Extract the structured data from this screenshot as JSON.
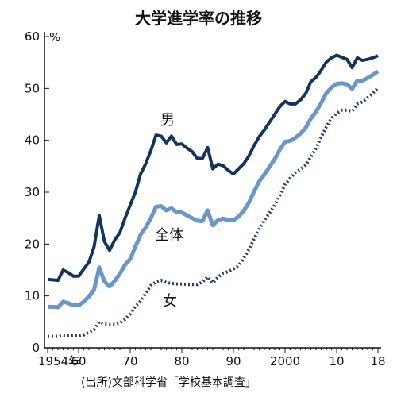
{
  "chart_data": {
    "type": "line",
    "title": "大学進学率の推移",
    "y_unit": "%",
    "source": "(出所)文部科学省「学校基本調査」",
    "x_tick_labels": [
      "1954年",
      "60",
      "70",
      "80",
      "90",
      "2000",
      "10",
      "18"
    ],
    "x_tick_years": [
      1954,
      1960,
      1970,
      1980,
      1990,
      2000,
      2010,
      2018
    ],
    "y_tick_labels": [
      "0",
      "10",
      "20",
      "30",
      "40",
      "50",
      "60"
    ],
    "xlim": [
      1954,
      2018
    ],
    "ylim": [
      0,
      60
    ],
    "grid": false,
    "colors": {
      "male": "#14345a",
      "total": "#6b96c8",
      "female": "#1e3c6e"
    },
    "series": [
      {
        "name": "男",
        "style": "solid",
        "x": [
          1954,
          1955,
          1956,
          1957,
          1958,
          1959,
          1960,
          1961,
          1962,
          1963,
          1964,
          1965,
          1966,
          1967,
          1968,
          1969,
          1970,
          1971,
          1972,
          1973,
          1974,
          1975,
          1976,
          1977,
          1978,
          1979,
          1980,
          1981,
          1982,
          1983,
          1984,
          1985,
          1986,
          1987,
          1988,
          1989,
          1990,
          1991,
          1992,
          1993,
          1994,
          1995,
          1996,
          1997,
          1998,
          1999,
          2000,
          2001,
          2002,
          2003,
          2004,
          2005,
          2006,
          2007,
          2008,
          2009,
          2010,
          2011,
          2012,
          2013,
          2014,
          2015,
          2016,
          2017,
          2018
        ],
        "values": [
          13.2,
          13.1,
          13.0,
          15.0,
          14.5,
          13.8,
          13.8,
          15.2,
          16.5,
          19.5,
          25.5,
          20.5,
          18.8,
          20.8,
          22.2,
          25.0,
          27.5,
          30.0,
          33.5,
          35.5,
          38.0,
          41.0,
          40.8,
          39.5,
          40.8,
          39.2,
          39.3,
          38.5,
          37.8,
          36.5,
          36.5,
          38.6,
          34.5,
          35.4,
          35.1,
          34.2,
          33.5,
          34.5,
          35.5,
          37.0,
          39.0,
          40.7,
          42.0,
          43.5,
          45.0,
          46.5,
          47.5,
          47.0,
          47.0,
          47.8,
          49.0,
          51.3,
          52.1,
          53.5,
          55.1,
          55.9,
          56.4,
          56.0,
          55.6,
          54.0,
          55.9,
          55.4,
          55.6,
          55.9,
          56.3
        ]
      },
      {
        "name": "全体",
        "style": "solid",
        "x": [
          1954,
          1955,
          1956,
          1957,
          1958,
          1959,
          1960,
          1961,
          1962,
          1963,
          1964,
          1965,
          1966,
          1967,
          1968,
          1969,
          1970,
          1971,
          1972,
          1973,
          1974,
          1975,
          1976,
          1977,
          1978,
          1979,
          1980,
          1981,
          1982,
          1983,
          1984,
          1985,
          1986,
          1987,
          1988,
          1989,
          1990,
          1991,
          1992,
          1993,
          1994,
          1995,
          1996,
          1997,
          1998,
          1999,
          2000,
          2001,
          2002,
          2003,
          2004,
          2005,
          2006,
          2007,
          2008,
          2009,
          2010,
          2011,
          2012,
          2013,
          2014,
          2015,
          2016,
          2017,
          2018
        ],
        "values": [
          7.9,
          7.9,
          7.8,
          8.9,
          8.6,
          8.2,
          8.2,
          8.9,
          9.9,
          11.2,
          15.5,
          12.8,
          11.8,
          12.9,
          14.3,
          16.0,
          17.1,
          19.5,
          21.8,
          23.2,
          25.0,
          27.2,
          27.3,
          26.5,
          26.9,
          26.1,
          26.1,
          25.5,
          25.0,
          24.5,
          24.4,
          26.5,
          23.6,
          24.6,
          24.9,
          24.6,
          24.6,
          25.3,
          26.4,
          28.0,
          30.1,
          32.1,
          33.4,
          34.9,
          36.4,
          38.2,
          39.7,
          39.9,
          40.5,
          41.3,
          42.4,
          44.2,
          45.5,
          47.2,
          49.1,
          50.2,
          50.9,
          51.0,
          50.8,
          49.9,
          51.5,
          51.5,
          52.0,
          52.6,
          53.3
        ]
      },
      {
        "name": "女",
        "style": "dotted",
        "x": [
          1954,
          1955,
          1956,
          1957,
          1958,
          1959,
          1960,
          1961,
          1962,
          1963,
          1964,
          1965,
          1966,
          1967,
          1968,
          1969,
          1970,
          1971,
          1972,
          1973,
          1974,
          1975,
          1976,
          1977,
          1978,
          1979,
          1980,
          1981,
          1982,
          1983,
          1984,
          1985,
          1986,
          1987,
          1988,
          1989,
          1990,
          1991,
          1992,
          1993,
          1994,
          1995,
          1996,
          1997,
          1998,
          1999,
          2000,
          2001,
          2002,
          2003,
          2004,
          2005,
          2006,
          2007,
          2008,
          2009,
          2010,
          2011,
          2012,
          2013,
          2014,
          2015,
          2016,
          2017,
          2018
        ],
        "values": [
          2.2,
          2.2,
          2.2,
          2.4,
          2.3,
          2.3,
          2.3,
          2.5,
          3.0,
          3.5,
          5.0,
          4.6,
          4.5,
          4.5,
          4.8,
          5.5,
          6.5,
          8.0,
          9.0,
          10.5,
          12.0,
          12.7,
          13.0,
          12.6,
          12.4,
          12.3,
          12.3,
          12.2,
          12.2,
          12.2,
          12.7,
          13.7,
          12.5,
          13.6,
          14.4,
          14.7,
          15.2,
          15.8,
          17.3,
          19.0,
          21.0,
          22.9,
          24.6,
          26.0,
          27.5,
          29.4,
          31.5,
          32.7,
          33.8,
          34.4,
          35.2,
          36.8,
          38.5,
          40.6,
          42.6,
          44.2,
          45.2,
          45.8,
          45.8,
          45.6,
          47.0,
          47.4,
          48.2,
          49.1,
          50.1
        ]
      }
    ]
  }
}
